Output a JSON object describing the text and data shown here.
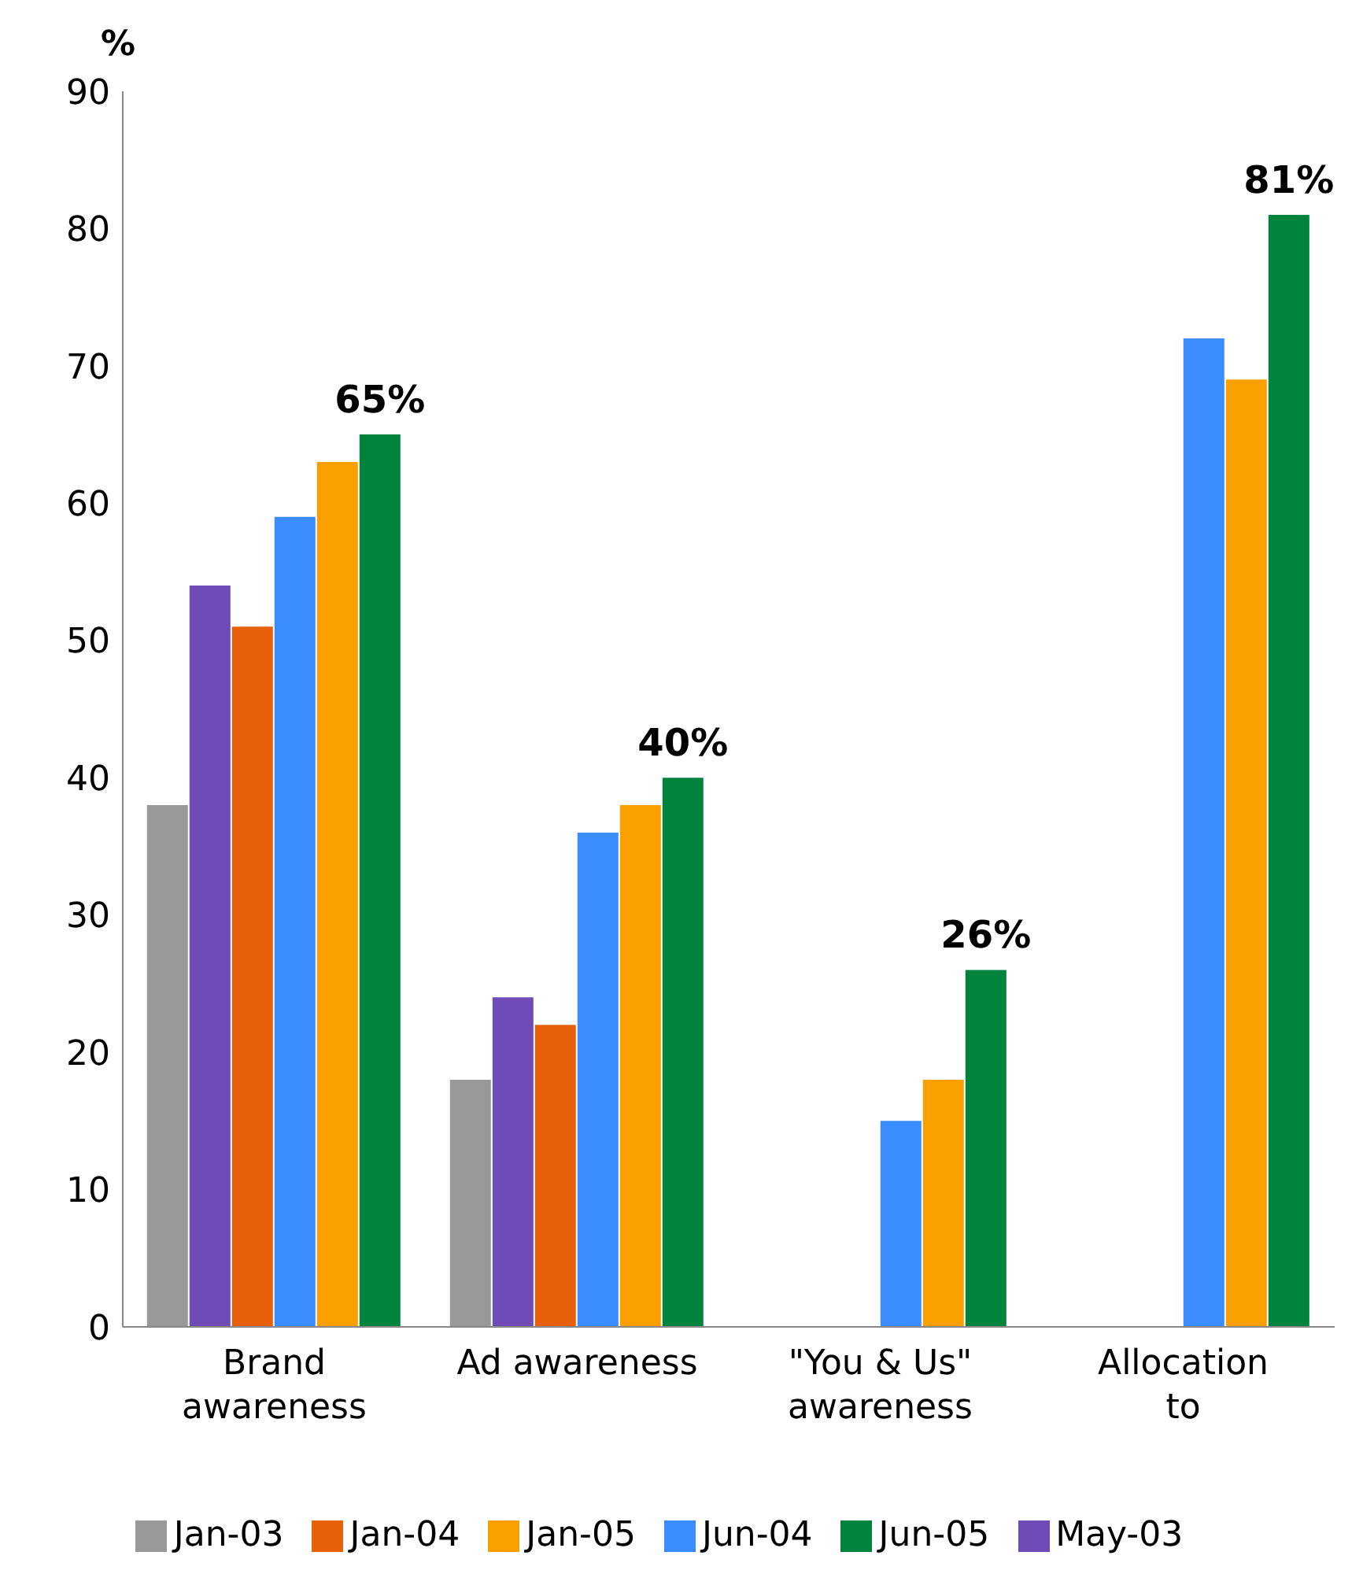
{
  "chart_data": {
    "type": "bar",
    "ylabel": "%",
    "categories": [
      "Brand awareness",
      "Ad awareness",
      "\"You & Us\" awareness",
      "Allocation to"
    ],
    "series": [
      {
        "name": "Jan-03",
        "color": "#999999",
        "values": [
          38,
          18,
          null,
          null
        ]
      },
      {
        "name": "May-03",
        "color": "#6f4bb5",
        "values": [
          54,
          24,
          null,
          null
        ]
      },
      {
        "name": "Jan-04",
        "color": "#e8610a",
        "values": [
          51,
          22,
          null,
          null
        ]
      },
      {
        "name": "Jun-04",
        "color": "#3a8cff",
        "values": [
          59,
          36,
          15,
          72
        ]
      },
      {
        "name": "Jan-05",
        "color": "#f9a000",
        "values": [
          63,
          38,
          18,
          69
        ]
      },
      {
        "name": "Jun-05",
        "color": "#00843d",
        "values": [
          65,
          40,
          26,
          81
        ],
        "value_labels": [
          "65%",
          "40%",
          "26%",
          "81%"
        ]
      }
    ],
    "ylim": [
      0,
      90
    ],
    "yticks": [
      0,
      10,
      20,
      30,
      40,
      50,
      60,
      70,
      80,
      90
    ],
    "grid": false,
    "legend": "bottom"
  }
}
